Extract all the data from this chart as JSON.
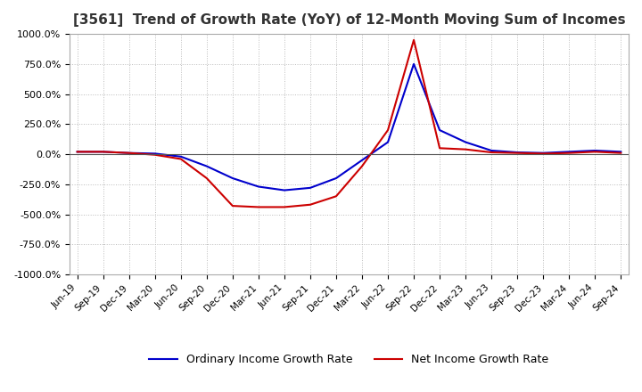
{
  "title": "[3561]  Trend of Growth Rate (YoY) of 12-Month Moving Sum of Incomes",
  "title_fontsize": 11,
  "background_color": "#ffffff",
  "plot_background_color": "#ffffff",
  "grid_color": "#bbbbbb",
  "ylim": [
    -1000,
    1000
  ],
  "yticks": [
    -1000,
    -750,
    -500,
    -250,
    0,
    250,
    500,
    750,
    1000
  ],
  "ytick_labels": [
    "-1000.0%",
    "-750.0%",
    "-500.0%",
    "-250.0%",
    "0.0%",
    "250.0%",
    "500.0%",
    "750.0%",
    "1000.0%"
  ],
  "x_labels": [
    "Jun-19",
    "Sep-19",
    "Dec-19",
    "Mar-20",
    "Jun-20",
    "Sep-20",
    "Dec-20",
    "Mar-21",
    "Jun-21",
    "Sep-21",
    "Dec-21",
    "Mar-22",
    "Jun-22",
    "Sep-22",
    "Dec-22",
    "Mar-23",
    "Jun-23",
    "Sep-23",
    "Dec-23",
    "Mar-24",
    "Jun-24",
    "Sep-24"
  ],
  "ordinary_income": [
    20,
    20,
    10,
    5,
    -20,
    -100,
    -200,
    -270,
    -300,
    -280,
    -200,
    -50,
    100,
    750,
    200,
    100,
    30,
    15,
    10,
    20,
    30,
    20
  ],
  "net_income": [
    20,
    20,
    10,
    -5,
    -40,
    -200,
    -430,
    -440,
    -440,
    -420,
    -350,
    -100,
    200,
    950,
    50,
    40,
    15,
    10,
    5,
    10,
    20,
    10
  ],
  "ordinary_color": "#0000cc",
  "net_color": "#cc0000",
  "line_width": 1.5,
  "legend_labels": [
    "Ordinary Income Growth Rate",
    "Net Income Growth Rate"
  ],
  "zero_line_color": "#555555"
}
